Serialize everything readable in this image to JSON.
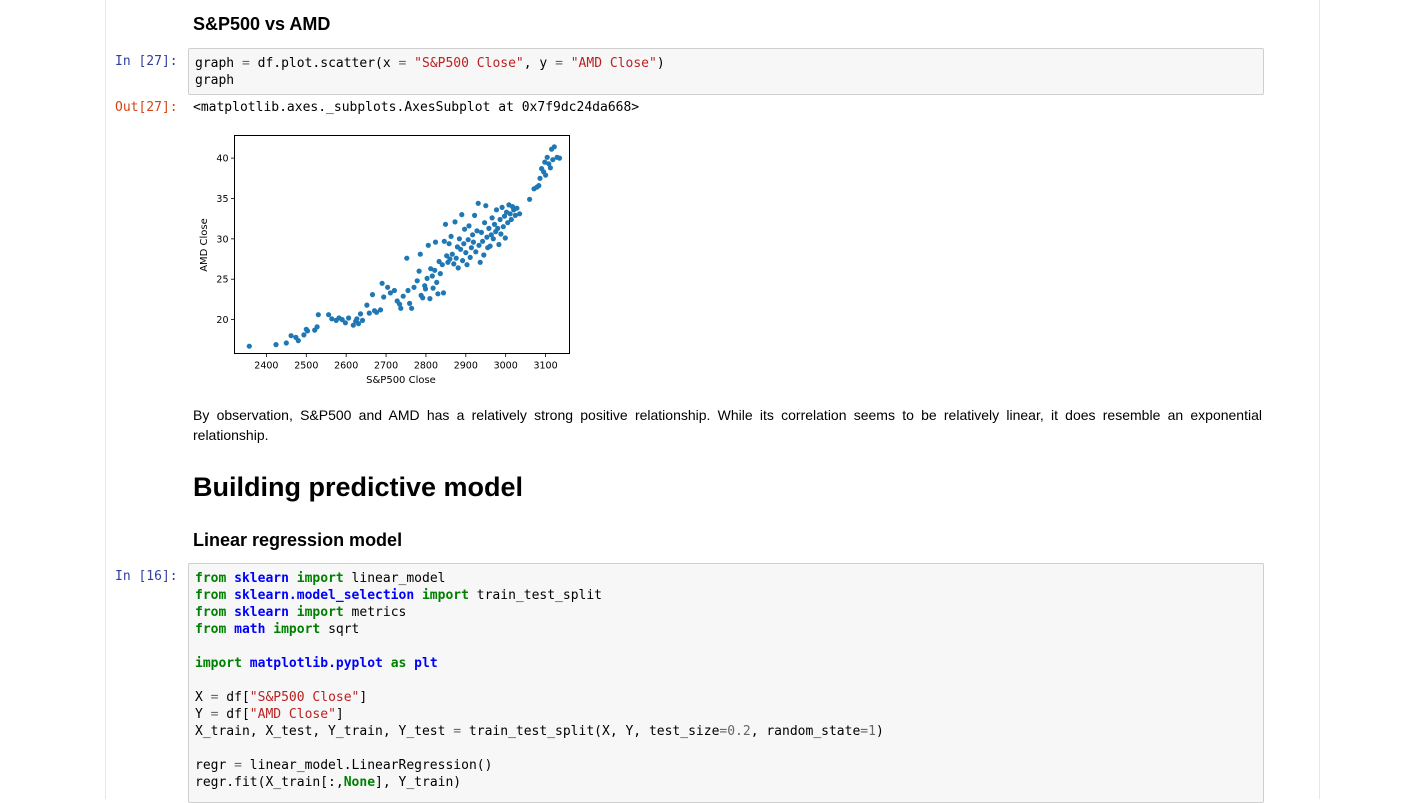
{
  "headings": {
    "sp_vs_amd": "S&P500 vs AMD",
    "building_model": "Building predictive model",
    "linreg": "Linear regression model"
  },
  "cell27": {
    "in_prompt": "In [27]:",
    "out_prompt": "Out[27]:",
    "code_lines": [
      [
        {
          "t": "graph "
        },
        {
          "t": "=",
          "c": "op"
        },
        {
          "t": " df.plot.scatter(x "
        },
        {
          "t": "=",
          "c": "op"
        },
        {
          "t": " "
        },
        {
          "t": "\"S&P500 Close\"",
          "c": "str"
        },
        {
          "t": ", y "
        },
        {
          "t": "=",
          "c": "op"
        },
        {
          "t": " "
        },
        {
          "t": "\"AMD Close\"",
          "c": "str"
        },
        {
          "t": ")"
        }
      ],
      [
        {
          "t": "graph"
        }
      ]
    ],
    "output_repr": "<matplotlib.axes._subplots.AxesSubplot at 0x7f9dc24da668>"
  },
  "observation_text": "By observation, S&P500 and AMD has a relatively strong positive relationship. While its correlation seems to be relatively linear, it does resemble an exponential relationship.",
  "cell16": {
    "in_prompt": "In [16]:",
    "code_lines": [
      [
        {
          "t": "from",
          "c": "kw"
        },
        {
          "t": " "
        },
        {
          "t": "sklearn",
          "c": "mod"
        },
        {
          "t": " "
        },
        {
          "t": "import",
          "c": "kw"
        },
        {
          "t": " linear_model"
        }
      ],
      [
        {
          "t": "from",
          "c": "kw"
        },
        {
          "t": " "
        },
        {
          "t": "sklearn.model_selection",
          "c": "mod"
        },
        {
          "t": " "
        },
        {
          "t": "import",
          "c": "kw"
        },
        {
          "t": " train_test_split"
        }
      ],
      [
        {
          "t": "from",
          "c": "kw"
        },
        {
          "t": " "
        },
        {
          "t": "sklearn",
          "c": "mod"
        },
        {
          "t": " "
        },
        {
          "t": "import",
          "c": "kw"
        },
        {
          "t": " metrics"
        }
      ],
      [
        {
          "t": "from",
          "c": "kw"
        },
        {
          "t": " "
        },
        {
          "t": "math",
          "c": "mod"
        },
        {
          "t": " "
        },
        {
          "t": "import",
          "c": "kw"
        },
        {
          "t": " sqrt"
        }
      ],
      [],
      [
        {
          "t": "import",
          "c": "kw"
        },
        {
          "t": " "
        },
        {
          "t": "matplotlib.pyplot",
          "c": "mod"
        },
        {
          "t": " "
        },
        {
          "t": "as",
          "c": "kw"
        },
        {
          "t": " "
        },
        {
          "t": "plt",
          "c": "mod"
        }
      ],
      [],
      [
        {
          "t": "X "
        },
        {
          "t": "=",
          "c": "op"
        },
        {
          "t": " df["
        },
        {
          "t": "\"S&P500 Close\"",
          "c": "str"
        },
        {
          "t": "]"
        }
      ],
      [
        {
          "t": "Y "
        },
        {
          "t": "=",
          "c": "op"
        },
        {
          "t": " df["
        },
        {
          "t": "\"AMD Close\"",
          "c": "str"
        },
        {
          "t": "]"
        }
      ],
      [
        {
          "t": "X_train, X_test, Y_train, Y_test "
        },
        {
          "t": "=",
          "c": "op"
        },
        {
          "t": " train_test_split(X, Y, test_size"
        },
        {
          "t": "=",
          "c": "op"
        },
        {
          "t": "0.2",
          "c": "num"
        },
        {
          "t": ", random_state"
        },
        {
          "t": "=",
          "c": "op"
        },
        {
          "t": "1",
          "c": "num"
        },
        {
          "t": ")"
        }
      ],
      [],
      [
        {
          "t": "regr "
        },
        {
          "t": "=",
          "c": "op"
        },
        {
          "t": " linear_model.LinearRegression()"
        }
      ],
      [
        {
          "t": "regr.fit(X_train[:,"
        },
        {
          "t": "None",
          "c": "kw"
        },
        {
          "t": "], Y_train)"
        }
      ]
    ]
  },
  "chart_data": {
    "type": "scatter",
    "title": "",
    "xlabel": "S&P500 Close",
    "ylabel": "AMD Close",
    "xlim": [
      2320,
      3160
    ],
    "ylim": [
      15.8,
      42.8
    ],
    "xticks": [
      2400,
      2500,
      2600,
      2700,
      2800,
      2900,
      3000,
      3100
    ],
    "yticks": [
      20,
      25,
      30,
      35,
      40
    ],
    "color": "#1f77b4",
    "points": [
      [
        2357,
        16.7
      ],
      [
        2424,
        16.9
      ],
      [
        2450,
        17.1
      ],
      [
        2462,
        18.0
      ],
      [
        2474,
        17.8
      ],
      [
        2480,
        17.4
      ],
      [
        2494,
        18.1
      ],
      [
        2500,
        18.8
      ],
      [
        2503,
        18.6
      ],
      [
        2521,
        18.7
      ],
      [
        2527,
        19.1
      ],
      [
        2530,
        20.6
      ],
      [
        2556,
        20.6
      ],
      [
        2564,
        20.1
      ],
      [
        2575,
        19.9
      ],
      [
        2582,
        20.2
      ],
      [
        2590,
        20.0
      ],
      [
        2598,
        19.6
      ],
      [
        2606,
        20.2
      ],
      [
        2618,
        19.3
      ],
      [
        2624,
        19.8
      ],
      [
        2627,
        20.1
      ],
      [
        2631,
        19.5
      ],
      [
        2636,
        20.7
      ],
      [
        2641,
        19.9
      ],
      [
        2652,
        21.8
      ],
      [
        2658,
        20.8
      ],
      [
        2666,
        23.1
      ],
      [
        2671,
        21.1
      ],
      [
        2676,
        20.9
      ],
      [
        2686,
        21.2
      ],
      [
        2690,
        24.5
      ],
      [
        2694,
        22.8
      ],
      [
        2704,
        24.0
      ],
      [
        2711,
        23.3
      ],
      [
        2721,
        23.6
      ],
      [
        2728,
        22.3
      ],
      [
        2734,
        21.9
      ],
      [
        2737,
        21.4
      ],
      [
        2743,
        22.9
      ],
      [
        2752,
        27.6
      ],
      [
        2755,
        23.6
      ],
      [
        2759,
        22.0
      ],
      [
        2764,
        21.4
      ],
      [
        2770,
        24.0
      ],
      [
        2778,
        24.8
      ],
      [
        2783,
        26.0
      ],
      [
        2786,
        28.1
      ],
      [
        2788,
        23.0
      ],
      [
        2792,
        22.7
      ],
      [
        2797,
        24.2
      ],
      [
        2799,
        23.8
      ],
      [
        2803,
        25.1
      ],
      [
        2806,
        29.2
      ],
      [
        2810,
        22.6
      ],
      [
        2812,
        26.3
      ],
      [
        2816,
        25.4
      ],
      [
        2818,
        23.9
      ],
      [
        2822,
        26.1
      ],
      [
        2824,
        29.6
      ],
      [
        2827,
        24.6
      ],
      [
        2830,
        23.2
      ],
      [
        2833,
        27.2
      ],
      [
        2836,
        25.7
      ],
      [
        2841,
        26.8
      ],
      [
        2844,
        23.3
      ],
      [
        2846,
        29.7
      ],
      [
        2849,
        31.8
      ],
      [
        2852,
        27.9
      ],
      [
        2855,
        27.1
      ],
      [
        2858,
        29.4
      ],
      [
        2860,
        27.5
      ],
      [
        2863,
        30.3
      ],
      [
        2866,
        28.1
      ],
      [
        2870,
        26.9
      ],
      [
        2873,
        32.1
      ],
      [
        2876,
        27.6
      ],
      [
        2879,
        29.0
      ],
      [
        2881,
        26.4
      ],
      [
        2884,
        30.0
      ],
      [
        2887,
        28.7
      ],
      [
        2890,
        33.0
      ],
      [
        2892,
        27.3
      ],
      [
        2895,
        29.4
      ],
      [
        2897,
        31.2
      ],
      [
        2900,
        28.3
      ],
      [
        2903,
        26.8
      ],
      [
        2906,
        29.9
      ],
      [
        2908,
        31.6
      ],
      [
        2911,
        27.7
      ],
      [
        2914,
        28.9
      ],
      [
        2917,
        30.5
      ],
      [
        2919,
        29.6
      ],
      [
        2922,
        32.9
      ],
      [
        2925,
        28.4
      ],
      [
        2928,
        31.0
      ],
      [
        2931,
        34.4
      ],
      [
        2933,
        29.2
      ],
      [
        2936,
        27.1
      ],
      [
        2939,
        30.8
      ],
      [
        2942,
        29.7
      ],
      [
        2945,
        28.0
      ],
      [
        2947,
        32.0
      ],
      [
        2950,
        34.1
      ],
      [
        2953,
        30.2
      ],
      [
        2955,
        28.9
      ],
      [
        2958,
        31.3
      ],
      [
        2961,
        29.1
      ],
      [
        2964,
        30.5
      ],
      [
        2966,
        32.6
      ],
      [
        2969,
        30.0
      ],
      [
        2972,
        31.8
      ],
      [
        2975,
        30.9
      ],
      [
        2977,
        33.6
      ],
      [
        2980,
        31.3
      ],
      [
        2983,
        29.3
      ],
      [
        2986,
        32.4
      ],
      [
        2988,
        30.6
      ],
      [
        2991,
        33.9
      ],
      [
        2994,
        31.5
      ],
      [
        2997,
        32.8
      ],
      [
        2999,
        30.1
      ],
      [
        3002,
        33.3
      ],
      [
        3005,
        32.0
      ],
      [
        3008,
        34.2
      ],
      [
        3011,
        33.1
      ],
      [
        3014,
        32.4
      ],
      [
        3017,
        34.0
      ],
      [
        3020,
        33.6
      ],
      [
        3024,
        32.9
      ],
      [
        3028,
        33.8
      ],
      [
        3035,
        33.1
      ],
      [
        3060,
        34.9
      ],
      [
        3071,
        36.2
      ],
      [
        3078,
        36.4
      ],
      [
        3083,
        36.6
      ],
      [
        3086,
        37.5
      ],
      [
        3090,
        38.7
      ],
      [
        3095,
        38.3
      ],
      [
        3098,
        39.5
      ],
      [
        3100,
        37.9
      ],
      [
        3104,
        40.1
      ],
      [
        3108,
        39.3
      ],
      [
        3112,
        38.8
      ],
      [
        3115,
        41.1
      ],
      [
        3118,
        39.8
      ],
      [
        3122,
        41.4
      ],
      [
        3129,
        40.1
      ],
      [
        3135,
        40.0
      ]
    ]
  }
}
